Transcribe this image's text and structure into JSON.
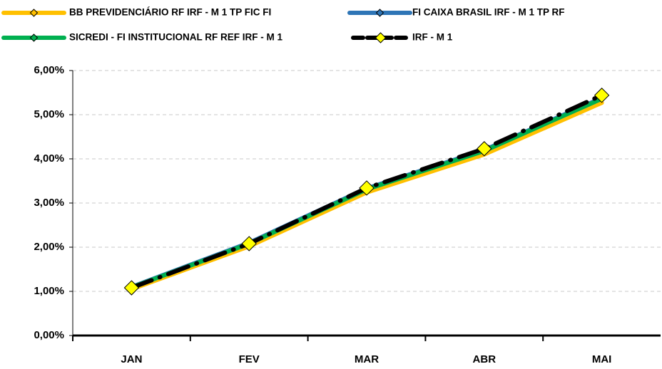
{
  "chart_data": {
    "type": "line",
    "categories": [
      "JAN",
      "FEV",
      "MAR",
      "ABR",
      "MAI"
    ],
    "series": [
      {
        "name": "BB PREVIDENCIÁRIO RF IRF - M 1 TP FIC FI",
        "color": "#ffc000",
        "marker_fill": "#ffc000",
        "values": [
          1.05,
          2.02,
          3.24,
          4.1,
          5.27
        ]
      },
      {
        "name": "FI CAIXA BRASIL IRF - M 1 TP RF",
        "color": "#2e75b6",
        "marker_fill": "#2e75b6",
        "values": [
          1.1,
          2.1,
          3.33,
          4.2,
          5.38
        ]
      },
      {
        "name": "SICREDI - FI INSTITUCIONAL RF REF IRF - M 1",
        "color": "#00b050",
        "marker_fill": "#00b050",
        "values": [
          1.09,
          2.08,
          3.31,
          4.18,
          5.36
        ]
      },
      {
        "name": "IRF - M 1",
        "color": "#000000",
        "marker_fill": "#ffff00",
        "values": [
          1.08,
          2.08,
          3.34,
          4.23,
          5.44
        ]
      }
    ],
    "ylim": [
      0,
      6
    ],
    "yticks": [
      {
        "value": 0,
        "label": "0,00%"
      },
      {
        "value": 1,
        "label": "1,00%"
      },
      {
        "value": 2,
        "label": "2,00%"
      },
      {
        "value": 3,
        "label": "3,00%"
      },
      {
        "value": 4,
        "label": "4,00%"
      },
      {
        "value": 5,
        "label": "5,00%"
      },
      {
        "value": 6,
        "label": "6,00%"
      }
    ],
    "grid": true
  }
}
